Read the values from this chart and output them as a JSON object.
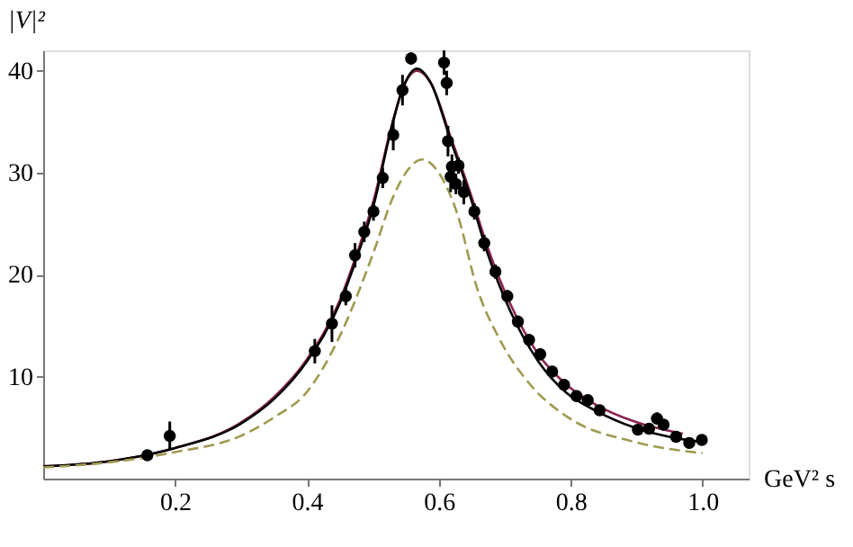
{
  "chart_data": {
    "type": "scatter",
    "xlabel": "GeV² s",
    "ylabel": "|V|²",
    "xlim": [
      0,
      1.07
    ],
    "ylim": [
      0,
      42
    ],
    "xticks": [
      0.2,
      0.4,
      0.6,
      0.8,
      {
        "value": 1.0,
        "label": "1.0"
      }
    ],
    "yticks": [
      10,
      20,
      30,
      40
    ],
    "grid": false,
    "series": [
      {
        "type": "line",
        "color": "#8b2252",
        "line_style": "solid",
        "x": [
          0,
          0.1,
          0.2,
          0.3,
          0.35,
          0.4,
          0.45,
          0.478,
          0.5,
          0.528,
          0.545,
          0.567,
          0.588,
          0.618,
          0.648,
          0.674,
          0.708,
          0.751,
          0.794,
          0.837,
          0.897,
          0.97
        ],
        "values": [
          1.2,
          1.7,
          3.0,
          5.5,
          8.0,
          11.7,
          17.5,
          22.5,
          27.0,
          34.5,
          38.2,
          40.0,
          38.8,
          33.5,
          28.0,
          22.7,
          17.2,
          12.2,
          9.2,
          7.3,
          5.6,
          4.4
        ]
      },
      {
        "type": "line",
        "color": "#000000",
        "line_style": "solid",
        "x": [
          0,
          0.1,
          0.2,
          0.3,
          0.35,
          0.4,
          0.45,
          0.478,
          0.5,
          0.528,
          0.545,
          0.567,
          0.588,
          0.618,
          0.648,
          0.674,
          0.708,
          0.751,
          0.794,
          0.837,
          0.897,
          0.966,
          1.0
        ],
        "values": [
          1.2,
          1.7,
          3.0,
          5.4,
          7.8,
          11.5,
          17.2,
          22.1,
          26.5,
          34.3,
          38.2,
          40.2,
          38.8,
          33.2,
          27.6,
          22.1,
          16.5,
          11.5,
          8.4,
          6.7,
          5.0,
          3.9,
          3.6
        ]
      },
      {
        "type": "line",
        "color": "#a09a50",
        "line_style": "dashed",
        "x": [
          0,
          0.1,
          0.2,
          0.3,
          0.35,
          0.4,
          0.45,
          0.5,
          0.53,
          0.55,
          0.575,
          0.6,
          0.628,
          0.658,
          0.692,
          0.739,
          0.794,
          0.897,
          1.0
        ],
        "values": [
          1.1,
          1.6,
          2.6,
          4.2,
          6.0,
          8.5,
          14.0,
          22.0,
          27.5,
          30.0,
          31.3,
          30.0,
          26.0,
          18.7,
          13.7,
          9.2,
          6.1,
          3.6,
          2.5
        ]
      },
      {
        "color": "#000000",
        "marker": "circle",
        "x": [
          0.158,
          0.192,
          0.412,
          0.438,
          0.459,
          0.473,
          0.487,
          0.501,
          0.515,
          0.531,
          0.545,
          0.558,
          0.608,
          0.612,
          0.614,
          0.618,
          0.62,
          0.626,
          0.63,
          0.638,
          0.654,
          0.669,
          0.686,
          0.704,
          0.72,
          0.737,
          0.754,
          0.772,
          0.79,
          0.809,
          0.826,
          0.844,
          0.902,
          0.919,
          0.931,
          0.941,
          0.96,
          0.98,
          0.999
        ],
        "values": [
          2.3,
          4.2,
          12.5,
          15.2,
          17.9,
          21.9,
          24.2,
          26.2,
          29.5,
          33.7,
          38.1,
          41.2,
          40.8,
          38.8,
          33.1,
          29.6,
          30.6,
          28.9,
          30.7,
          28.1,
          26.2,
          23.1,
          20.3,
          17.9,
          15.4,
          13.6,
          12.2,
          10.5,
          9.2,
          8.1,
          7.7,
          6.7,
          4.8,
          4.9,
          5.9,
          5.3,
          4.1,
          3.5,
          3.8
        ],
        "errors": [
          0.5,
          1.4,
          1.2,
          1.8,
          0.9,
          1.2,
          1.0,
          0.9,
          1.0,
          1.5,
          1.5,
          0.6,
          1.2,
          1.2,
          1.5,
          1.5,
          1.2,
          1.0,
          0.8,
          1.2,
          0.8,
          0.8,
          0.7,
          0.6,
          0.6,
          0.6,
          0.6,
          0.5,
          0.5,
          0.5,
          0.5,
          0.5,
          0.5,
          0.5,
          0.6,
          0.5,
          0.5,
          0.5,
          0.5
        ]
      }
    ]
  }
}
